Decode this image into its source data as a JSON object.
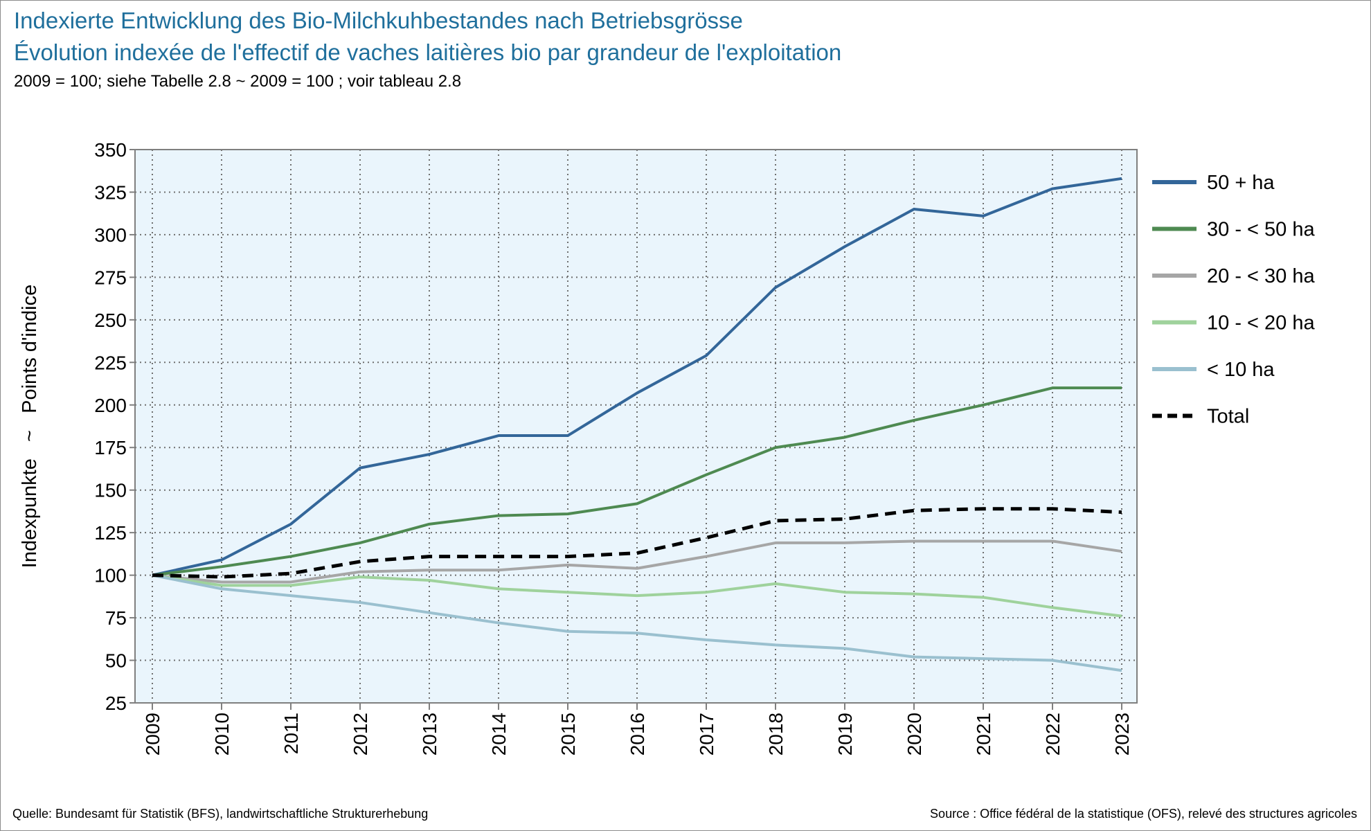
{
  "header": {
    "title_de": "Indexierte Entwicklung des Bio-Milchkuhbestandes nach Betriebsgrösse",
    "title_fr": "Évolution indexée de l'effectif de vaches laitières bio par grandeur de l'exploitation",
    "subtitle": "2009 = 100; siehe Tabelle 2.8  ~  2009 = 100 ; voir tableau 2.8"
  },
  "footer": {
    "source_de": "Quelle: Bundesamt für Statistik (BFS), landwirtschaftliche Strukturerhebung",
    "source_fr": "Source : Office fédéral de la statistique (OFS), relevé des structures agricoles"
  },
  "chart_data": {
    "type": "line",
    "ylabel": "Indexpunkte   ~   Points d'indice",
    "xlabel": "",
    "ylim": [
      25,
      350
    ],
    "y_ticks": [
      25,
      50,
      75,
      100,
      125,
      150,
      175,
      200,
      225,
      250,
      275,
      300,
      325,
      350
    ],
    "categories": [
      "2009",
      "2010",
      "2011",
      "2012",
      "2013",
      "2014",
      "2015",
      "2016",
      "2017",
      "2018",
      "2019",
      "2020",
      "2021",
      "2022",
      "2023"
    ],
    "grid": true,
    "legend_position": "right",
    "plot_background": "#eaf5fc",
    "series": [
      {
        "name": "50 + ha",
        "color": "#336699",
        "dashed": false,
        "values": [
          100,
          109,
          130,
          163,
          171,
          182,
          182,
          207,
          229,
          269,
          293,
          315,
          311,
          327,
          333
        ]
      },
      {
        "name": "30 - < 50 ha",
        "color": "#4e8a51",
        "dashed": false,
        "values": [
          100,
          105,
          111,
          119,
          130,
          135,
          136,
          142,
          159,
          175,
          181,
          191,
          200,
          210,
          210
        ]
      },
      {
        "name": "20 - < 30 ha",
        "color": "#a6a6a6",
        "dashed": false,
        "values": [
          100,
          96,
          96,
          102,
          103,
          103,
          106,
          104,
          111,
          119,
          119,
          120,
          120,
          120,
          114
        ]
      },
      {
        "name": "10 - < 20 ha",
        "color": "#9fd29c",
        "dashed": false,
        "values": [
          100,
          94,
          94,
          99,
          97,
          92,
          90,
          88,
          90,
          95,
          90,
          89,
          87,
          81,
          76
        ]
      },
      {
        "name": "< 10 ha",
        "color": "#9ac0cf",
        "dashed": false,
        "values": [
          100,
          92,
          88,
          84,
          78,
          72,
          67,
          66,
          62,
          59,
          57,
          52,
          51,
          50,
          44
        ]
      },
      {
        "name": "Total",
        "color": "#000000",
        "dashed": true,
        "values": [
          100,
          99,
          101,
          108,
          111,
          111,
          111,
          113,
          122,
          132,
          133,
          138,
          139,
          139,
          137
        ]
      }
    ]
  }
}
